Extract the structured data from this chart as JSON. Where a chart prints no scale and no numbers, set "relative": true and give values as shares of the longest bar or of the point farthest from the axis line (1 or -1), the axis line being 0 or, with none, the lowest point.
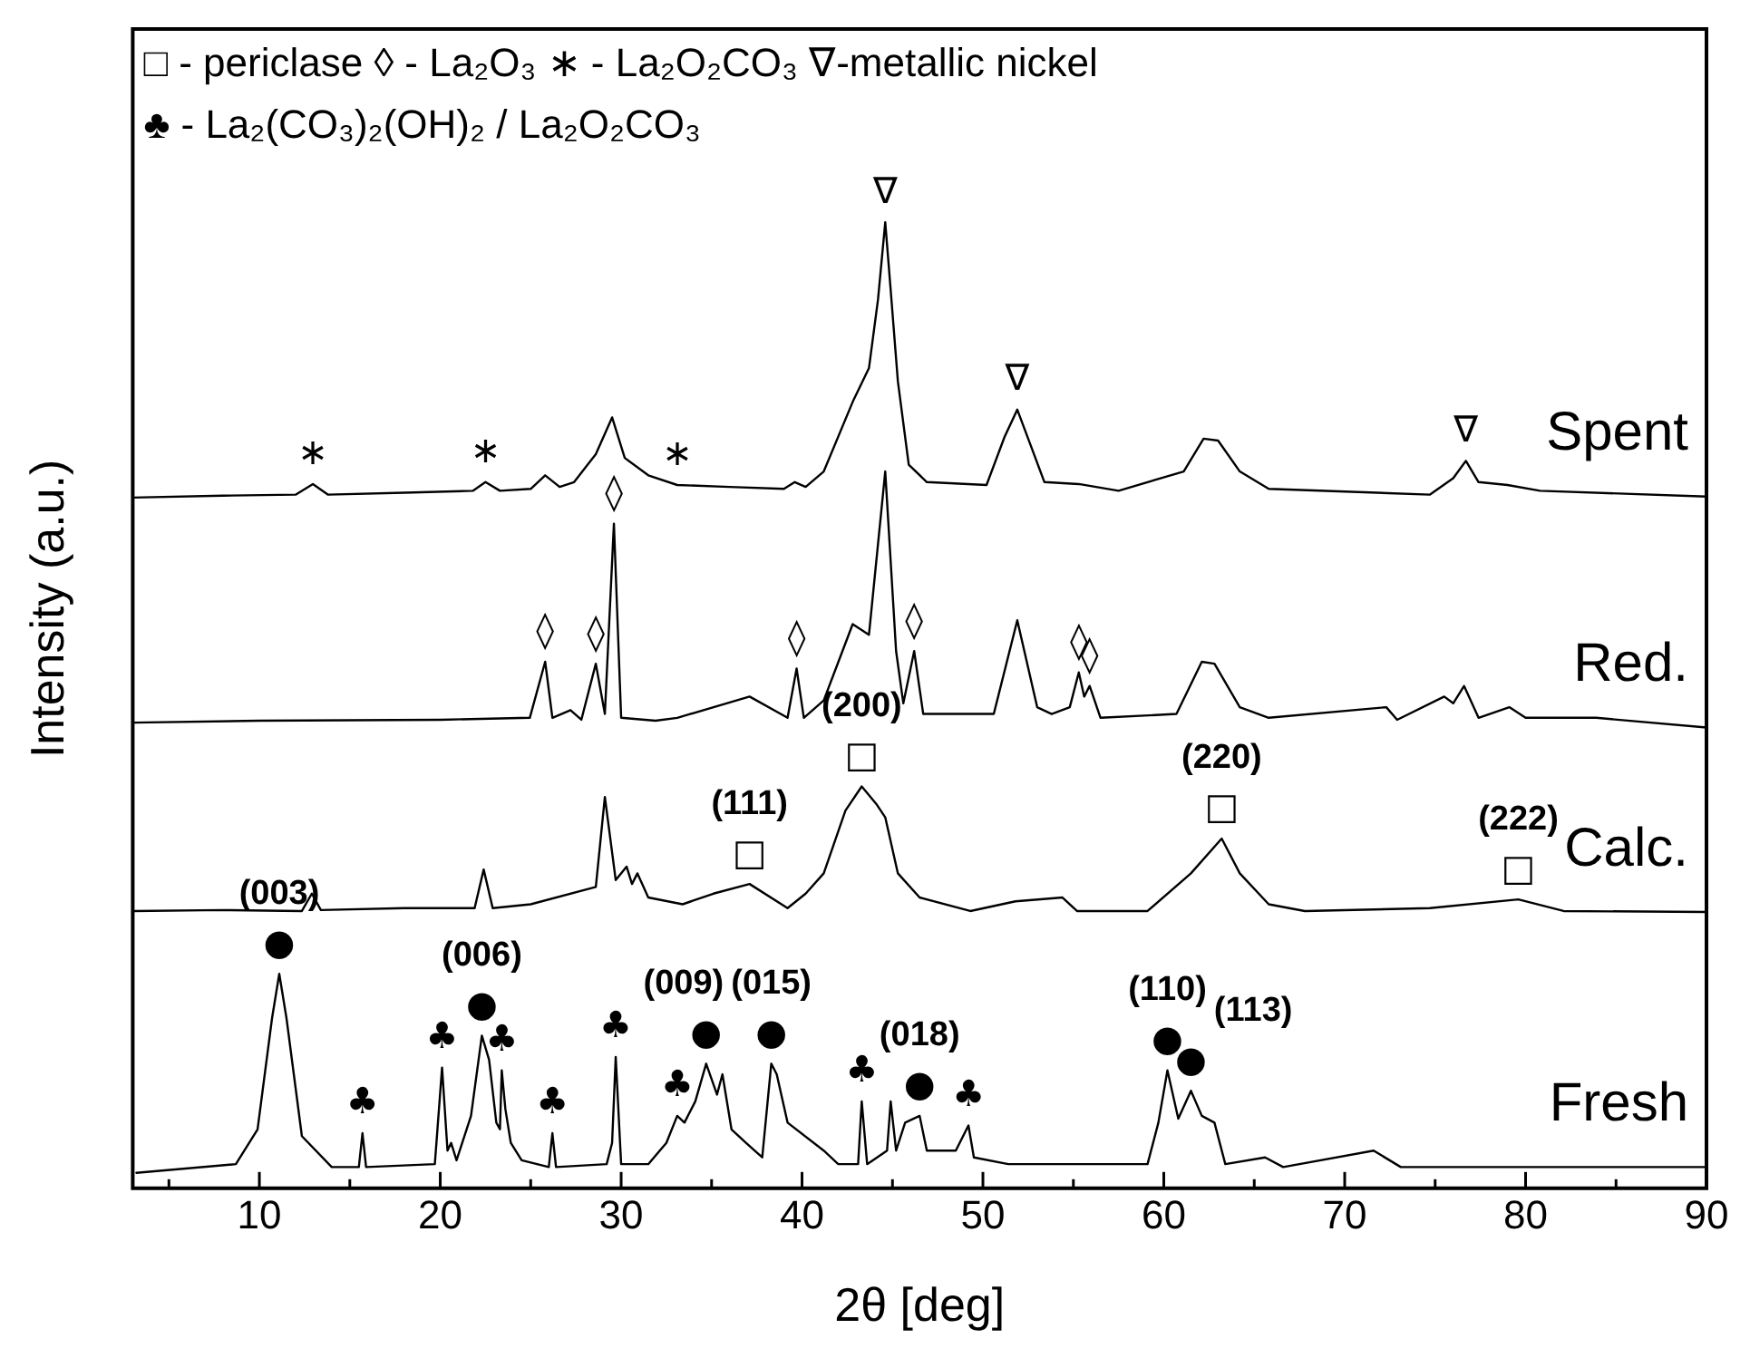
{
  "chart_data": {
    "type": "line",
    "relative": true,
    "xlabel": "2θ [deg]",
    "ylabel": "Intensity (a.u.)",
    "xlim": [
      3,
      90
    ],
    "xticks": [
      {
        "value": 5,
        "label": null
      },
      10,
      {
        "value": 15,
        "label": null
      },
      20,
      {
        "value": 25,
        "label": null
      },
      30,
      {
        "value": 35,
        "label": null
      },
      40,
      {
        "value": 45,
        "label": null
      },
      50,
      {
        "value": 55,
        "label": null
      },
      60,
      {
        "value": 65,
        "label": null
      },
      70,
      {
        "value": 75,
        "label": null
      },
      80,
      {
        "value": 85,
        "label": null
      },
      90
    ],
    "tick_labels": "x",
    "grid": false,
    "legend": false,
    "marker": "none",
    "line_style": "solid",
    "series": [
      {
        "name": "Spent",
        "color": "#000000",
        "x": [
          3,
          8,
          12,
          12.96,
          13.8,
          18,
          21.8,
          22.5,
          23.3,
          25,
          25.8,
          26.6,
          27.4,
          28.6,
          29.5,
          30.2,
          31.5,
          33.1,
          36,
          39,
          39.6,
          40.2,
          41.2,
          42.8,
          43.7,
          44.2,
          44.6,
          44.9,
          45.3,
          45.9,
          46.9,
          50.2,
          51.2,
          51.9,
          52.6,
          53.4,
          55.3,
          57.5,
          61.1,
          62.2,
          63,
          64.2,
          65.8,
          74.7,
          76,
          76.7,
          77.4,
          79,
          80.8,
          90
        ],
        "values": [
          0.715,
          0.717,
          0.718,
          0.729,
          0.718,
          0.72,
          0.722,
          0.731,
          0.722,
          0.724,
          0.738,
          0.726,
          0.731,
          0.76,
          0.798,
          0.756,
          0.738,
          0.728,
          0.726,
          0.724,
          0.731,
          0.726,
          0.742,
          0.814,
          0.849,
          0.92,
          1,
          0.93,
          0.835,
          0.749,
          0.731,
          0.728,
          0.778,
          0.806,
          0.771,
          0.731,
          0.729,
          0.722,
          0.742,
          0.776,
          0.774,
          0.742,
          0.724,
          0.718,
          0.735,
          0.753,
          0.731,
          0.728,
          0.722,
          0.716
        ]
      },
      {
        "name": "Red.",
        "color": "#000000",
        "x": [
          3,
          10,
          20,
          24.95,
          25.8,
          26.2,
          27.2,
          27.8,
          28.6,
          29.1,
          29.6,
          30,
          31.9,
          33.1,
          37.1,
          39.2,
          39.7,
          40.1,
          41.2,
          42.8,
          43.7,
          44.6,
          45.2,
          45.6,
          46.2,
          46.7,
          50.6,
          51.9,
          53,
          53.8,
          54.8,
          55.3,
          55.6,
          55.9,
          56.5,
          60.7,
          62.1,
          62.8,
          64.2,
          65.8,
          72.3,
          72.9,
          75.5,
          76,
          76.6,
          77.4,
          79.1,
          80,
          83.9,
          90
        ],
        "values": [
          0.482,
          0.484,
          0.485,
          0.487,
          0.545,
          0.487,
          0.495,
          0.485,
          0.543,
          0.491,
          0.688,
          0.487,
          0.484,
          0.487,
          0.509,
          0.487,
          0.538,
          0.487,
          0.505,
          0.584,
          0.573,
          0.742,
          0.556,
          0.502,
          0.556,
          0.491,
          0.491,
          0.588,
          0.498,
          0.491,
          0.498,
          0.534,
          0.509,
          0.52,
          0.487,
          0.491,
          0.545,
          0.543,
          0.498,
          0.487,
          0.498,
          0.485,
          0.509,
          0.502,
          0.52,
          0.487,
          0.498,
          0.487,
          0.487,
          0.477
        ]
      },
      {
        "name": "Calc.",
        "color": "#000000",
        "x": [
          3,
          8,
          12.35,
          12.9,
          13.4,
          18,
          21.9,
          22.4,
          22.9,
          25,
          28.6,
          29.1,
          29.7,
          30.3,
          30.6,
          30.9,
          31.5,
          33.4,
          35.1,
          37.1,
          39.2,
          40.2,
          41.2,
          42.4,
          43.3,
          44.1,
          44.6,
          45.3,
          46.5,
          49.3,
          51.8,
          54.4,
          55.2,
          59.1,
          61.5,
          63.2,
          64.2,
          65.8,
          67.8,
          74.7,
          79.6,
          82.1,
          90
        ],
        "values": [
          0.287,
          0.288,
          0.287,
          0.305,
          0.288,
          0.29,
          0.29,
          0.33,
          0.29,
          0.294,
          0.312,
          0.405,
          0.319,
          0.333,
          0.315,
          0.326,
          0.301,
          0.294,
          0.305,
          0.315,
          0.29,
          0.305,
          0.326,
          0.391,
          0.416,
          0.398,
          0.384,
          0.326,
          0.301,
          0.287,
          0.297,
          0.301,
          0.287,
          0.287,
          0.326,
          0.362,
          0.326,
          0.294,
          0.287,
          0.29,
          0.299,
          0.287,
          0.286
        ]
      },
      {
        "name": "Fresh",
        "color": "#000000",
        "x": [
          3.2,
          8.7,
          9.9,
          10.7,
          11.1,
          11.5,
          12.35,
          14,
          15.5,
          15.7,
          15.9,
          19.7,
          20.1,
          20.4,
          20.6,
          20.9,
          21.7,
          22.3,
          22.7,
          23.1,
          23.3,
          23.4,
          23.6,
          23.9,
          24.5,
          26,
          26.2,
          26.4,
          29.2,
          29.5,
          29.7,
          30,
          31.5,
          32.5,
          33.1,
          33.5,
          34.1,
          34.7,
          35.3,
          35.6,
          36.1,
          36.9,
          37.8,
          38.3,
          38.6,
          39.2,
          41.2,
          42,
          43.1,
          43.3,
          43.6,
          44.7,
          44.9,
          45.2,
          45.7,
          46.5,
          46.9,
          48.5,
          49.2,
          49.5,
          51.4,
          59.1,
          59.7,
          60.2,
          60.8,
          61.5,
          62.1,
          62.8,
          63.4,
          65.6,
          66.6,
          71.6,
          73.1,
          90
        ],
        "values": [
          0.016,
          0.025,
          0.061,
          0.176,
          0.222,
          0.176,
          0.054,
          0.022,
          0.022,
          0.057,
          0.022,
          0.025,
          0.125,
          0.039,
          0.047,
          0.029,
          0.075,
          0.158,
          0.133,
          0.068,
          0.061,
          0.122,
          0.082,
          0.047,
          0.029,
          0.022,
          0.057,
          0.022,
          0.025,
          0.047,
          0.136,
          0.025,
          0.025,
          0.047,
          0.075,
          0.068,
          0.09,
          0.129,
          0.097,
          0.118,
          0.061,
          0.047,
          0.032,
          0.129,
          0.118,
          0.068,
          0.039,
          0.025,
          0.025,
          0.09,
          0.025,
          0.039,
          0.09,
          0.039,
          0.068,
          0.075,
          0.039,
          0.039,
          0.065,
          0.032,
          0.025,
          0.025,
          0.068,
          0.122,
          0.072,
          0.101,
          0.075,
          0.068,
          0.025,
          0.032,
          0.022,
          0.039,
          0.022,
          0.022
        ]
      }
    ],
    "annotations": [
      "□ - periclase ◊ - La₂O₃ ∗ - La₂O₂CO₃ ∇-metallic nickel",
      "♣ - La₂(CO₃)₂(OH)₂ / La₂O₂CO₃",
      {
        "text": "∗",
        "x": 12.96,
        "y": 0.729
      },
      {
        "text": "∗",
        "x": 22.5,
        "y": 0.731
      },
      {
        "text": "∗",
        "x": 33.1,
        "y": 0.728
      },
      {
        "text": "∇",
        "x": 44.6,
        "y": 1
      },
      {
        "text": "∇",
        "x": 51.9,
        "y": 0.806
      },
      {
        "text": "∇",
        "x": 76.7,
        "y": 0.753
      },
      {
        "text": "◊",
        "x": 29.6,
        "y": 0.688
      },
      {
        "text": "◊",
        "x": 25.8,
        "y": 0.545
      },
      {
        "text": "◊",
        "x": 28.6,
        "y": 0.543
      },
      {
        "text": "◊",
        "x": 39.7,
        "y": 0.538
      },
      {
        "text": "◊",
        "x": 46.2,
        "y": 0.556
      },
      {
        "text": "◊",
        "x": 55.3,
        "y": 0.534
      },
      {
        "text": "◊",
        "x": 55.9,
        "y": 0.52
      },
      {
        "text": "□",
        "x": 37.1,
        "y": 0.315
      },
      {
        "text": "(111)",
        "x": 37.1,
        "y": 0.315
      },
      {
        "text": "□",
        "x": 43.3,
        "y": 0.416
      },
      {
        "text": "(200)",
        "x": 43.3,
        "y": 0.416
      },
      {
        "text": "□",
        "x": 63.2,
        "y": 0.362
      },
      {
        "text": "(220)",
        "x": 63.2,
        "y": 0.362
      },
      {
        "text": "□",
        "x": 79.6,
        "y": 0.299
      },
      {
        "text": "(222)",
        "x": 79.6,
        "y": 0.299
      },
      {
        "text": "●",
        "x": 11.1,
        "y": 0.222
      },
      {
        "text": "(003)",
        "x": 11.1,
        "y": 0.222
      },
      {
        "text": "♣",
        "x": 15.7,
        "y": 0.057
      },
      {
        "text": "♣",
        "x": 20.1,
        "y": 0.125
      },
      {
        "text": "●",
        "x": 22.3,
        "y": 0.158
      },
      {
        "text": "(006)",
        "x": 22.3,
        "y": 0.158
      },
      {
        "text": "♣",
        "x": 23.4,
        "y": 0.122
      },
      {
        "text": "♣",
        "x": 26.2,
        "y": 0.057
      },
      {
        "text": "♣",
        "x": 29.7,
        "y": 0.136
      },
      {
        "text": "♣",
        "x": 33.1,
        "y": 0.075
      },
      {
        "text": "●",
        "x": 38.3,
        "y": 0.129
      },
      {
        "text": "(015)",
        "x": 38.3,
        "y": 0.129
      },
      {
        "text": "●",
        "x": 34.7,
        "y": 0.129
      },
      {
        "text": "(009)",
        "x": 34.7,
        "y": 0.129
      },
      {
        "text": "♣",
        "x": 43.3,
        "y": 0.09
      },
      {
        "text": "●",
        "x": 46.5,
        "y": 0.075
      },
      {
        "text": "(018)",
        "x": 46.5,
        "y": 0.075
      },
      {
        "text": "♣",
        "x": 49.2,
        "y": 0.065
      },
      {
        "text": "●",
        "x": 60.2,
        "y": 0.122
      },
      {
        "text": "(110)",
        "x": 60.2,
        "y": 0.122
      },
      {
        "text": "●",
        "x": 61.5,
        "y": 0.101
      },
      {
        "text": "(113)",
        "x": 61.5,
        "y": 0.101
      }
    ]
  }
}
